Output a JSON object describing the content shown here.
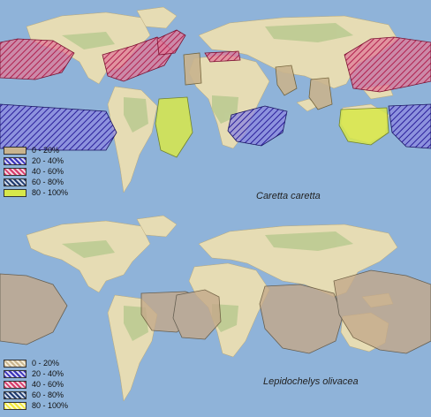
{
  "maps": [
    {
      "species": "Caretta caretta",
      "legend": [
        {
          "label": "0 - 20%",
          "color": "#c9b48e",
          "pattern": "solid"
        },
        {
          "label": "20 - 40%",
          "color": "#3a32b8",
          "pattern": "hatch"
        },
        {
          "label": "40 - 60%",
          "color": "#d63a6a",
          "pattern": "hatch"
        },
        {
          "label": "60 - 80%",
          "color": "#1f3a6e",
          "pattern": "hatch"
        },
        {
          "label": "80 - 100%",
          "color": "#d8e84a",
          "pattern": "solid"
        }
      ]
    },
    {
      "species": "Lepidochelys olivacea",
      "legend": [
        {
          "label": "0 - 20%",
          "color": "#c9b48e",
          "pattern": "hatch"
        },
        {
          "label": "20 - 40%",
          "color": "#3a32b8",
          "pattern": "hatch"
        },
        {
          "label": "40 - 60%",
          "color": "#d63a6a",
          "pattern": "hatch"
        },
        {
          "label": "60 - 80%",
          "color": "#1f3a6e",
          "pattern": "hatch"
        },
        {
          "label": "80 - 100%",
          "color": "#f2ea3a",
          "pattern": "hatch"
        }
      ]
    }
  ],
  "colors": {
    "ocean": "#8fb3d9",
    "land": "#e6dcb4",
    "land_green": "#b7c98e"
  }
}
